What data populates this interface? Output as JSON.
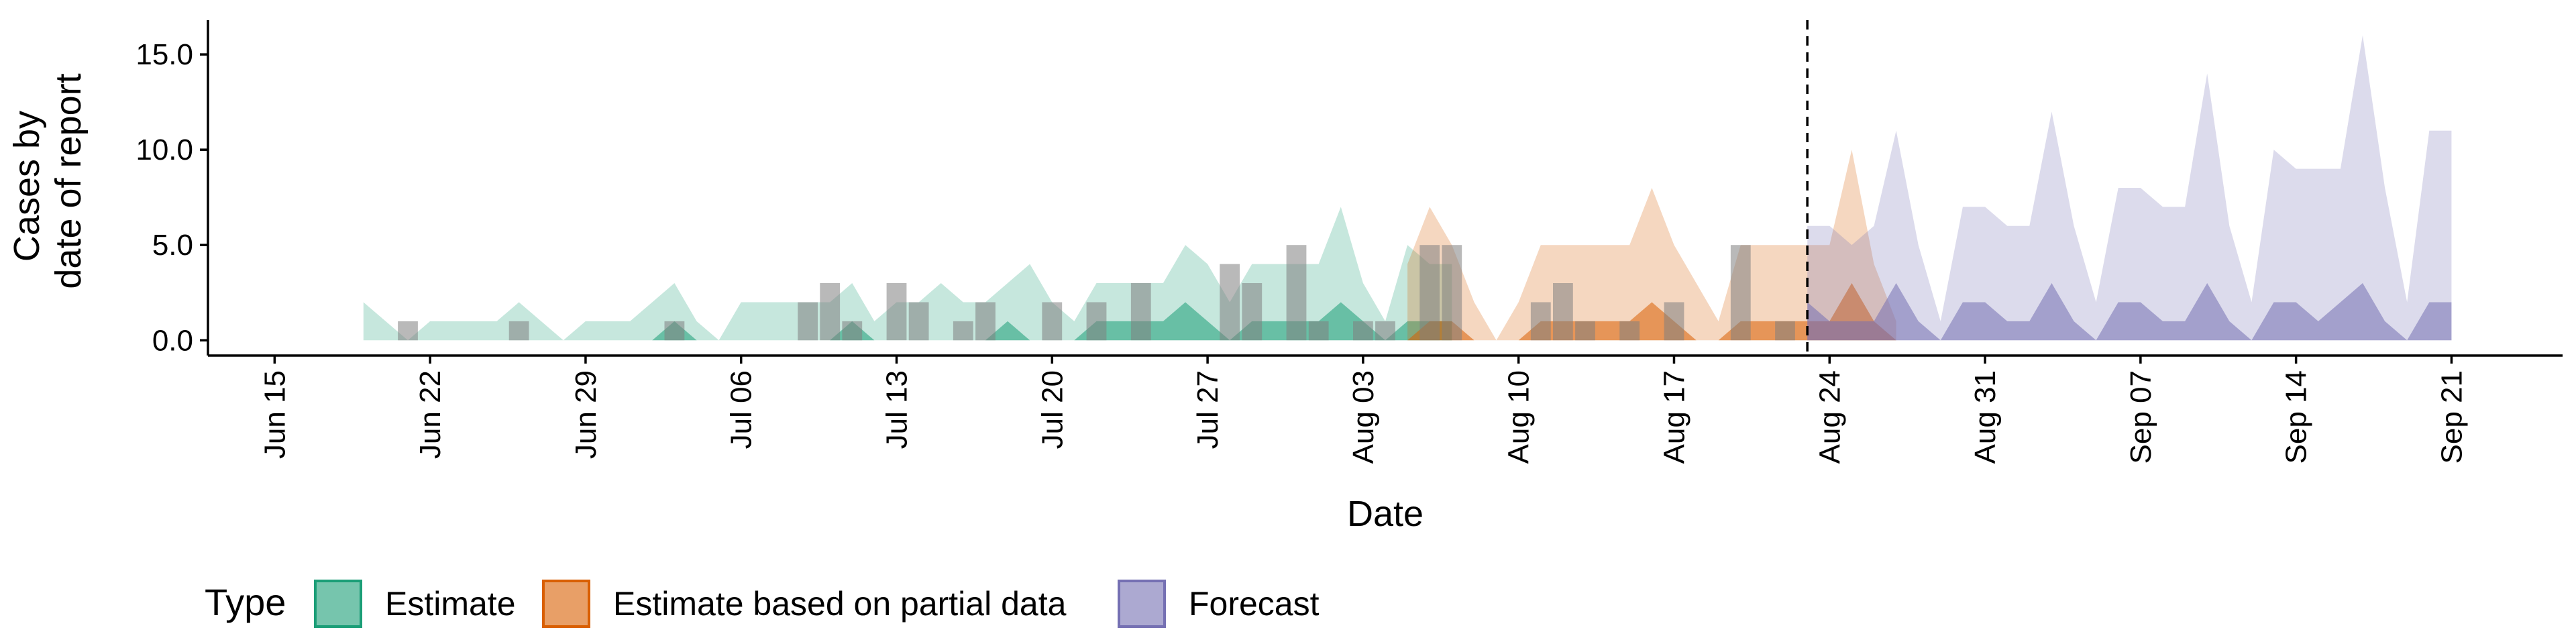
{
  "chart_data": {
    "type": "area",
    "xlabel": "Date",
    "ylabel_lines": [
      "Cases by",
      "date of report"
    ],
    "ylim": [
      -0.8,
      16.8
    ],
    "xlim": [
      "2020-06-12",
      "2020-09-26"
    ],
    "y_ticks": [
      0,
      5,
      10,
      15
    ],
    "y_tick_labels": [
      "0.0",
      "5.0",
      "10.0",
      "15.0"
    ],
    "x_ticks": [
      "2020-06-15",
      "2020-06-22",
      "2020-06-29",
      "2020-07-06",
      "2020-07-13",
      "2020-07-20",
      "2020-07-27",
      "2020-08-03",
      "2020-08-10",
      "2020-08-17",
      "2020-08-24",
      "2020-08-31",
      "2020-09-07",
      "2020-09-14",
      "2020-09-21"
    ],
    "x_tick_labels": [
      "Jun 15",
      "Jun 22",
      "Jun 29",
      "Jul 06",
      "Jul 13",
      "Jul 20",
      "Jul 27",
      "Aug 03",
      "Aug 10",
      "Aug 17",
      "Aug 24",
      "Aug 31",
      "Sep 07",
      "Sep 14",
      "Sep 21"
    ],
    "forecast_start": "2020-08-23",
    "grid": false,
    "legend": {
      "title": "Type",
      "position": "bottom-left",
      "entries": [
        {
          "name": "Estimate",
          "color": "#1b9e77"
        },
        {
          "name": "Estimate based on partial data",
          "color": "#d95f02"
        },
        {
          "name": "Forecast",
          "color": "#7570b3"
        }
      ]
    },
    "series": [
      {
        "name": "Estimate",
        "color": "#1b9e77",
        "start_date": "2020-06-19",
        "outer_upper": [
          2,
          1,
          0,
          1,
          1,
          1,
          1,
          2,
          1,
          0,
          1,
          1,
          1,
          2,
          3,
          1,
          0,
          2,
          2,
          2,
          2,
          2,
          3,
          1,
          2,
          2,
          3,
          2,
          2,
          3,
          4,
          2,
          1,
          3,
          3,
          3,
          3,
          5,
          4,
          2,
          4,
          4,
          4,
          4,
          7,
          3,
          1,
          5,
          4,
          4
        ],
        "inner_upper": [
          0,
          0,
          0,
          0,
          0,
          0,
          0,
          0,
          0,
          0,
          0,
          0,
          0,
          0,
          1,
          0,
          0,
          0,
          0,
          0,
          0,
          0,
          1,
          0,
          0,
          0,
          0,
          0,
          0,
          1,
          0,
          0,
          0,
          1,
          1,
          1,
          1,
          2,
          1,
          0,
          1,
          1,
          1,
          1,
          2,
          1,
          0,
          1,
          1,
          1
        ]
      },
      {
        "name": "Estimate based on partial data",
        "color": "#d95f02",
        "start_date": "2020-08-05",
        "outer_upper": [
          4,
          7,
          5,
          2,
          0,
          2,
          5,
          5,
          5,
          5,
          5,
          8,
          5,
          3,
          1,
          5,
          5,
          5,
          5,
          5,
          10,
          4,
          1
        ],
        "inner_upper": [
          0,
          1,
          1,
          0,
          0,
          0,
          1,
          1,
          1,
          1,
          1,
          2,
          1,
          0,
          0,
          1,
          1,
          1,
          1,
          1,
          3,
          1,
          0
        ]
      },
      {
        "name": "Forecast",
        "color": "#7570b3",
        "start_date": "2020-08-23",
        "outer_upper": [
          6,
          6,
          5,
          6,
          11,
          5,
          1,
          7,
          7,
          6,
          6,
          12,
          6,
          2,
          8,
          8,
          7,
          7,
          14,
          6,
          2,
          10,
          9,
          9,
          9,
          16,
          8,
          2,
          11,
          11
        ],
        "inner_upper": [
          2,
          1,
          1,
          1,
          3,
          1,
          0,
          2,
          2,
          1,
          1,
          3,
          1,
          0,
          2,
          2,
          1,
          1,
          3,
          1,
          0,
          2,
          2,
          1,
          2,
          3,
          1,
          0,
          2,
          2
        ]
      }
    ],
    "reported_cases": {
      "dates": [
        "2020-06-21",
        "2020-06-26",
        "2020-07-03",
        "2020-07-09",
        "2020-07-10",
        "2020-07-11",
        "2020-07-13",
        "2020-07-14",
        "2020-07-16",
        "2020-07-17",
        "2020-07-20",
        "2020-07-22",
        "2020-07-24",
        "2020-07-28",
        "2020-07-29",
        "2020-07-31",
        "2020-08-01",
        "2020-08-03",
        "2020-08-04",
        "2020-08-06",
        "2020-08-07",
        "2020-08-11",
        "2020-08-12",
        "2020-08-13",
        "2020-08-15",
        "2020-08-17",
        "2020-08-20",
        "2020-08-22"
      ],
      "values": [
        1,
        1,
        1,
        2,
        3,
        1,
        3,
        2,
        1,
        2,
        2,
        2,
        3,
        4,
        3,
        5,
        1,
        1,
        1,
        5,
        5,
        2,
        3,
        1,
        1,
        2,
        5,
        1
      ]
    }
  }
}
